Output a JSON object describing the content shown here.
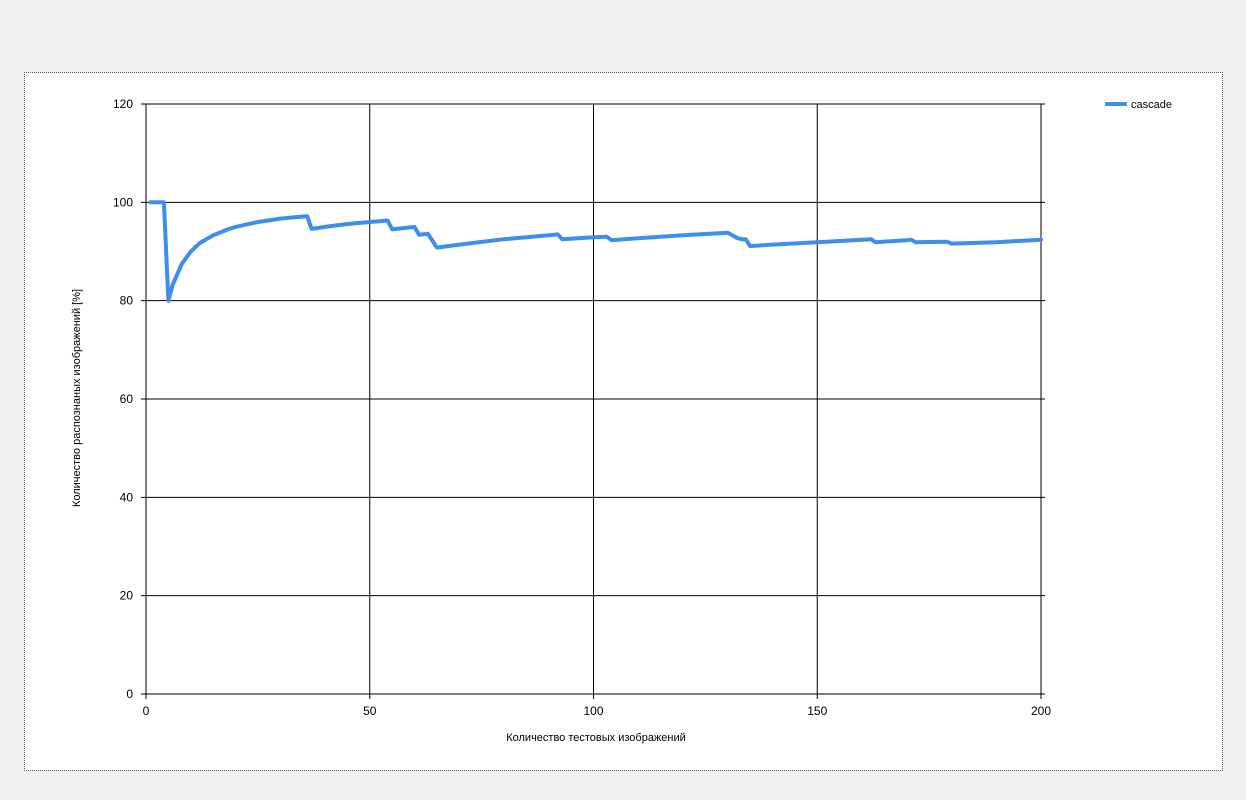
{
  "chart_data": {
    "type": "line",
    "title": "",
    "xlabel": "Количество тестовых изображений",
    "ylabel": "Количество распознаных изображений [%]",
    "xlim": [
      0,
      200
    ],
    "ylim": [
      0,
      120
    ],
    "x_ticks": [
      0,
      50,
      100,
      150,
      200
    ],
    "y_ticks": [
      0,
      20,
      40,
      60,
      80,
      100,
      120
    ],
    "grid": true,
    "legend_position": "top-right",
    "series": [
      {
        "name": "cascade",
        "color": "#3f8ded",
        "x": [
          1,
          4,
          5,
          6,
          8,
          10,
          12,
          15,
          18,
          20,
          25,
          30,
          36,
          37,
          40,
          45,
          50,
          54,
          55,
          58,
          60,
          61,
          62,
          63,
          65,
          70,
          80,
          90,
          92,
          93,
          100,
          103,
          104,
          110,
          120,
          130,
          132,
          133,
          134,
          135,
          140,
          150,
          160,
          162,
          163,
          170,
          171,
          172,
          179,
          180,
          190,
          200
        ],
        "y": [
          100,
          100,
          80,
          83.3,
          87.5,
          90,
          91.7,
          93.3,
          94.4,
          95,
          96,
          96.7,
          97.2,
          94.6,
          95,
          95.6,
          96,
          96.3,
          94.5,
          94.8,
          95,
          93.4,
          93.5,
          93.6,
          90.8,
          91.4,
          92.5,
          93.3,
          93.5,
          92.5,
          92.9,
          93,
          92.3,
          92.7,
          93.3,
          93.8,
          92.8,
          92.5,
          92.5,
          91.1,
          91.4,
          91.9,
          92.4,
          92.5,
          91.9,
          92.3,
          92.4,
          91.9,
          92,
          91.6,
          91.9,
          92.4
        ]
      }
    ]
  }
}
